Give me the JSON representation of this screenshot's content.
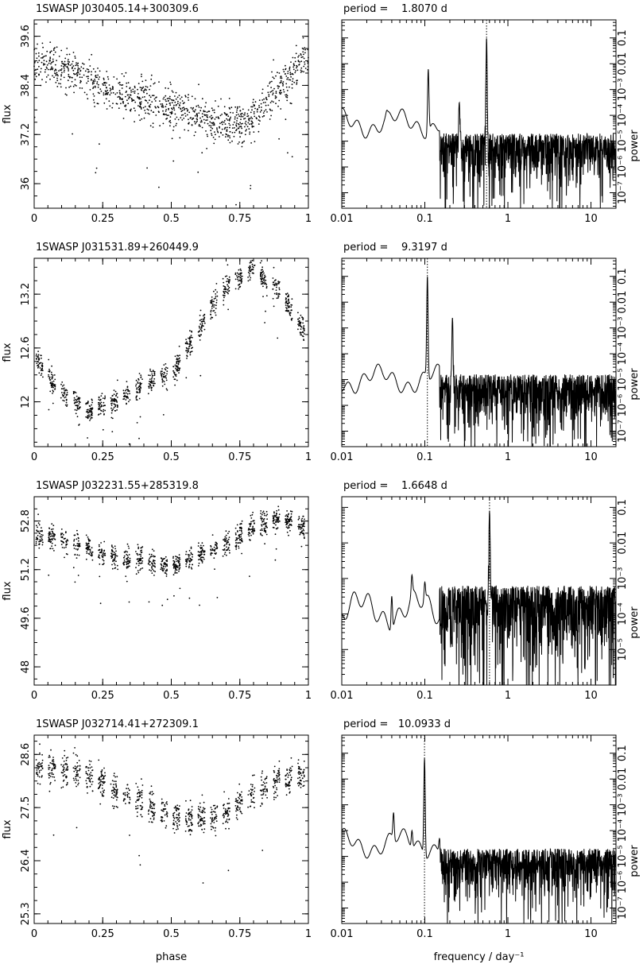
{
  "chart_data": [
    {
      "type": "scatter",
      "title": "1SWASP J030405.14+300309.6",
      "xlabel": "",
      "ylabel": "flux",
      "xlim": [
        0,
        1
      ],
      "ylim": [
        35.4,
        40.0
      ],
      "xticks": [
        0,
        0.25,
        0.5,
        0.75,
        1
      ],
      "xtick_labels": [
        "0",
        "0.25",
        "0.5",
        "0.75",
        "1"
      ],
      "yticks": [
        36,
        37.2,
        38.4,
        39.6
      ],
      "ytick_labels": [
        "36",
        "37.2",
        "38.4",
        "39.6"
      ],
      "n_points": 1100,
      "profile_phase": [
        0,
        0.1,
        0.2,
        0.3,
        0.4,
        0.5,
        0.6,
        0.7,
        0.8,
        0.9,
        1.0
      ],
      "profile_flux": [
        38.9,
        38.9,
        38.6,
        38.2,
        38.0,
        37.9,
        37.7,
        37.4,
        37.6,
        38.4,
        39.2
      ],
      "scatter_sigma": 0.45
    },
    {
      "type": "line",
      "title": "period =    1.8070 d",
      "xlabel": "",
      "ylabel": "power",
      "xscale": "log",
      "yscale": "log",
      "xlim": [
        0.01,
        20
      ],
      "xticks": [
        0.01,
        0.1,
        1,
        10
      ],
      "xtick_labels": [
        "0.01",
        "0.1",
        "1",
        "10"
      ],
      "ylim_log10": [
        -7.6,
        -0.3
      ],
      "ytick_labels": [
        "10⁻⁷",
        "10⁻⁶",
        "10⁻⁵",
        "10⁻⁴",
        "10⁻³",
        "0.01",
        "0.1"
      ],
      "ytick_log10": [
        -7,
        -6,
        -5,
        -4,
        -3,
        -2,
        -1
      ],
      "period_days": 1.807,
      "peak_frequency": 0.5534,
      "peak_log10_power": -1.0,
      "base_log10_power": -4.3,
      "noise_log10_power": -5.2,
      "secondary_peaks": [
        [
          0.11,
          -2.2
        ],
        [
          0.035,
          -3.8
        ],
        [
          0.26,
          -3.5
        ]
      ]
    },
    {
      "type": "scatter",
      "title": "1SWASP J031531.89+260449.9",
      "xlabel": "",
      "ylabel": "flux",
      "xlim": [
        0,
        1
      ],
      "ylim": [
        11.5,
        13.6
      ],
      "xticks": [
        0,
        0.25,
        0.5,
        0.75,
        1
      ],
      "xtick_labels": [
        "0",
        "0.25",
        "0.5",
        "0.75",
        "1"
      ],
      "yticks": [
        12,
        12.6,
        13.2
      ],
      "ytick_labels": [
        "12",
        "12.6",
        "13.2"
      ],
      "n_points": 1000,
      "profile_phase": [
        0,
        0.1,
        0.2,
        0.3,
        0.4,
        0.5,
        0.6,
        0.7,
        0.8,
        0.9,
        1.0
      ],
      "profile_flux": [
        12.5,
        12.1,
        11.9,
        12.0,
        12.2,
        12.3,
        12.8,
        13.3,
        13.5,
        13.2,
        12.7
      ],
      "scatter_sigma": 0.12
    },
    {
      "type": "line",
      "title": "period =    9.3197 d",
      "xlabel": "",
      "ylabel": "power",
      "xscale": "log",
      "yscale": "log",
      "xlim": [
        0.01,
        20
      ],
      "xticks": [
        0.01,
        0.1,
        1,
        10
      ],
      "xtick_labels": [
        "0.01",
        "0.1",
        "1",
        "10"
      ],
      "ylim_log10": [
        -7.6,
        -0.3
      ],
      "ytick_labels": [
        "10⁻⁷",
        "10⁻⁶",
        "10⁻⁵",
        "10⁻⁴",
        "10⁻³",
        "0.01",
        "0.1"
      ],
      "ytick_log10": [
        -7,
        -6,
        -5,
        -4,
        -3,
        -2,
        -1
      ],
      "period_days": 9.3197,
      "peak_frequency": 0.1073,
      "peak_log10_power": -1.0,
      "base_log10_power": -5.0,
      "noise_log10_power": -5.3,
      "secondary_peaks": [
        [
          0.215,
          -2.6
        ],
        [
          0.02,
          -5.6
        ],
        [
          0.04,
          -4.8
        ]
      ]
    },
    {
      "type": "scatter",
      "title": "1SWASP J032231.55+285319.8",
      "xlabel": "",
      "ylabel": "flux",
      "xlim": [
        0,
        1
      ],
      "ylim": [
        47.4,
        53.6
      ],
      "xticks": [
        0,
        0.25,
        0.5,
        0.75,
        1
      ],
      "xtick_labels": [
        "0",
        "0.25",
        "0.5",
        "0.75",
        "1"
      ],
      "yticks": [
        48,
        49.6,
        51.2,
        52.8
      ],
      "ytick_labels": [
        "48",
        "49.6",
        "51.2",
        "52.8"
      ],
      "n_points": 1050,
      "profile_phase": [
        0,
        0.1,
        0.2,
        0.3,
        0.4,
        0.5,
        0.6,
        0.7,
        0.8,
        0.9,
        1.0
      ],
      "profile_flux": [
        52.4,
        52.2,
        51.9,
        51.6,
        51.5,
        51.3,
        51.7,
        52.0,
        52.6,
        52.9,
        52.5
      ],
      "scatter_sigma": 0.35
    },
    {
      "type": "line",
      "title": "period =    1.6648 d",
      "xlabel": "",
      "ylabel": "power",
      "xscale": "log",
      "yscale": "log",
      "xlim": [
        0.01,
        20
      ],
      "xticks": [
        0.01,
        0.1,
        1,
        10
      ],
      "xtick_labels": [
        "0.01",
        "0.1",
        "1",
        "10"
      ],
      "ylim_log10": [
        -6.0,
        -0.7
      ],
      "ytick_labels": [
        "10⁻⁵",
        "10⁻⁴",
        "10⁻³",
        "0.01",
        "0.1"
      ],
      "ytick_log10": [
        -5,
        -4,
        -3,
        -2,
        -1
      ],
      "period_days": 1.6648,
      "peak_frequency": 0.6007,
      "peak_log10_power": -1.1,
      "base_log10_power": -3.9,
      "noise_log10_power": -3.7,
      "secondary_peaks": [
        [
          0.07,
          -2.9
        ],
        [
          0.04,
          -3.5
        ],
        [
          0.1,
          -3.1
        ]
      ]
    },
    {
      "type": "scatter",
      "title": "1SWASP J032714.41+272309.1",
      "xlabel": "phase",
      "ylabel": "flux",
      "xlim": [
        0,
        1
      ],
      "ylim": [
        25.1,
        29.0
      ],
      "xticks": [
        0,
        0.25,
        0.5,
        0.75,
        1
      ],
      "xtick_labels": [
        "0",
        "0.25",
        "0.5",
        "0.75",
        "1"
      ],
      "yticks": [
        25.3,
        26.4,
        27.5,
        28.6
      ],
      "ytick_labels": [
        "25.3",
        "26.4",
        "27.5",
        "28.6"
      ],
      "n_points": 950,
      "profile_phase": [
        0,
        0.1,
        0.2,
        0.3,
        0.4,
        0.5,
        0.6,
        0.7,
        0.8,
        0.9,
        1.0
      ],
      "profile_flux": [
        28.3,
        28.3,
        28.2,
        27.8,
        27.6,
        27.3,
        27.2,
        27.4,
        27.8,
        28.1,
        28.2
      ],
      "scatter_sigma": 0.3
    },
    {
      "type": "line",
      "title": "period =   10.0933 d",
      "xlabel": "frequency / day⁻¹",
      "ylabel": "power",
      "xscale": "log",
      "yscale": "log",
      "xlim": [
        0.01,
        20
      ],
      "xticks": [
        0.01,
        0.1,
        1,
        10
      ],
      "xtick_labels": [
        "0.01",
        "0.1",
        "1",
        "10"
      ],
      "ylim_log10": [
        -7.6,
        -0.3
      ],
      "ytick_labels": [
        "10⁻⁷",
        "10⁻⁶",
        "10⁻⁵",
        "10⁻⁴",
        "10⁻³",
        "0.01",
        "0.1"
      ],
      "ytick_log10": [
        -7,
        -6,
        -5,
        -4,
        -3,
        -2,
        -1
      ],
      "period_days": 10.0933,
      "peak_frequency": 0.0991,
      "peak_log10_power": -1.2,
      "base_log10_power": -4.5,
      "noise_log10_power": -5.2,
      "secondary_peaks": [
        [
          0.042,
          -3.3
        ],
        [
          0.07,
          -4.0
        ],
        [
          0.15,
          -4.3
        ]
      ]
    }
  ]
}
